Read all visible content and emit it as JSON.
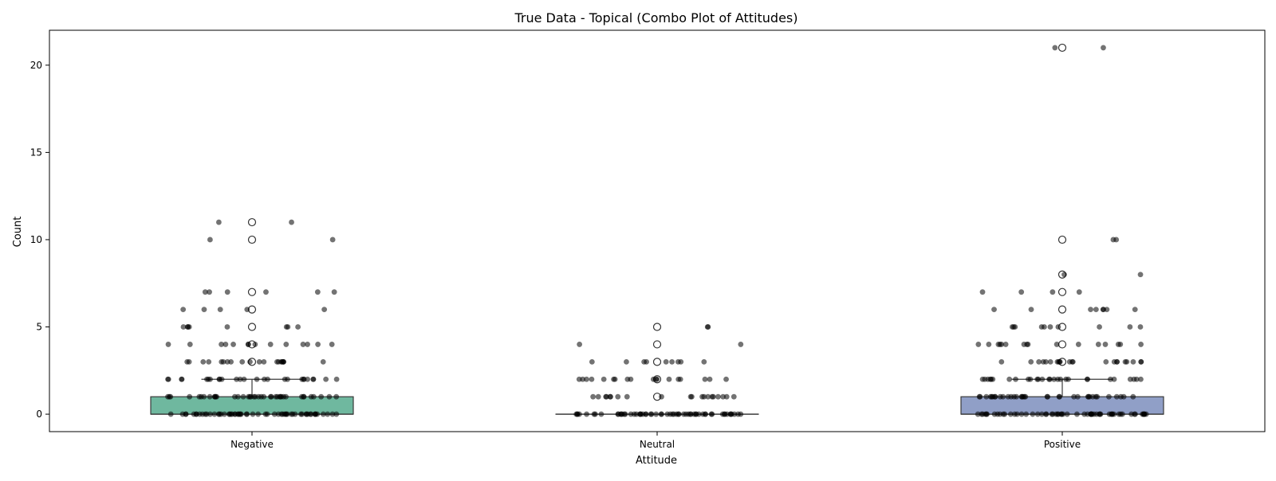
{
  "chart_data": {
    "type": "box",
    "overlay": "strip",
    "title": "True Data - Topical (Combo Plot of Attitudes)",
    "xlabel": "Attitude",
    "ylabel": "Count",
    "ylim": [
      -1,
      22
    ],
    "yticks": [
      0,
      5,
      10,
      15,
      20
    ],
    "categories": [
      "Negative",
      "Neutral",
      "Positive"
    ],
    "colors": {
      "Negative": "#6fb89f",
      "Neutral": "#e8987a",
      "Positive": "#909fc7",
      "box_edge": "#3a3a3a",
      "strip_points": "#000000",
      "outlier_edge": "#333333"
    },
    "boxes": [
      {
        "category": "Negative",
        "q1": 0,
        "median": 0,
        "q3": 1,
        "whisker_low": 0,
        "whisker_high": 2,
        "outliers": [
          3,
          4,
          5,
          6,
          7,
          10,
          11
        ]
      },
      {
        "category": "Neutral",
        "q1": 0,
        "median": 0,
        "q3": 0,
        "whisker_low": 0,
        "whisker_high": 0,
        "outliers": [
          1,
          2,
          3,
          4,
          5
        ]
      },
      {
        "category": "Positive",
        "q1": 0,
        "median": 0,
        "q3": 1,
        "whisker_low": 0,
        "whisker_high": 2,
        "outliers": [
          3,
          4,
          5,
          6,
          7,
          8,
          10,
          21
        ]
      }
    ],
    "strip_points": {
      "Negative": [
        {
          "v": 0,
          "n": 60
        },
        {
          "v": 1,
          "n": 40
        },
        {
          "v": 2,
          "n": 26
        },
        {
          "v": 3,
          "n": 20
        },
        {
          "v": 4,
          "n": 14
        },
        {
          "v": 5,
          "n": 8
        },
        {
          "v": 6,
          "n": 5
        },
        {
          "v": 7,
          "n": 6
        },
        {
          "v": 10,
          "n": 2
        },
        {
          "v": 11,
          "n": 2
        }
      ],
      "Neutral": [
        {
          "v": 0,
          "n": 60
        },
        {
          "v": 1,
          "n": 20
        },
        {
          "v": 2,
          "n": 18
        },
        {
          "v": 3,
          "n": 9
        },
        {
          "v": 4,
          "n": 2
        },
        {
          "v": 5,
          "n": 2
        }
      ],
      "Positive": [
        {
          "v": 0,
          "n": 60
        },
        {
          "v": 1,
          "n": 36
        },
        {
          "v": 2,
          "n": 28
        },
        {
          "v": 3,
          "n": 22
        },
        {
          "v": 4,
          "n": 16
        },
        {
          "v": 5,
          "n": 10
        },
        {
          "v": 6,
          "n": 8
        },
        {
          "v": 7,
          "n": 4
        },
        {
          "v": 8,
          "n": 2
        },
        {
          "v": 10,
          "n": 2
        },
        {
          "v": 21,
          "n": 2
        }
      ]
    }
  }
}
